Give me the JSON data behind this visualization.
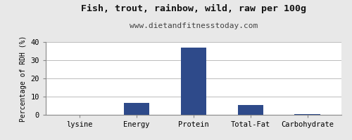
{
  "title": "Fish, trout, rainbow, wild, raw per 100g",
  "subtitle": "www.dietandfitnesstoday.com",
  "categories": [
    "lysine",
    "Energy",
    "Protein",
    "Total-Fat",
    "Carbohydrate"
  ],
  "values": [
    0.0,
    6.5,
    37.0,
    5.5,
    0.5
  ],
  "bar_color": "#2e4a8a",
  "ylabel": "Percentage of RDH (%)",
  "ylim": [
    0,
    40
  ],
  "yticks": [
    0,
    10,
    20,
    30,
    40
  ],
  "background_color": "#e8e8e8",
  "plot_bg_color": "#ffffff",
  "title_fontsize": 9.5,
  "subtitle_fontsize": 8,
  "ylabel_fontsize": 7,
  "tick_fontsize": 7.5,
  "bar_width": 0.45
}
